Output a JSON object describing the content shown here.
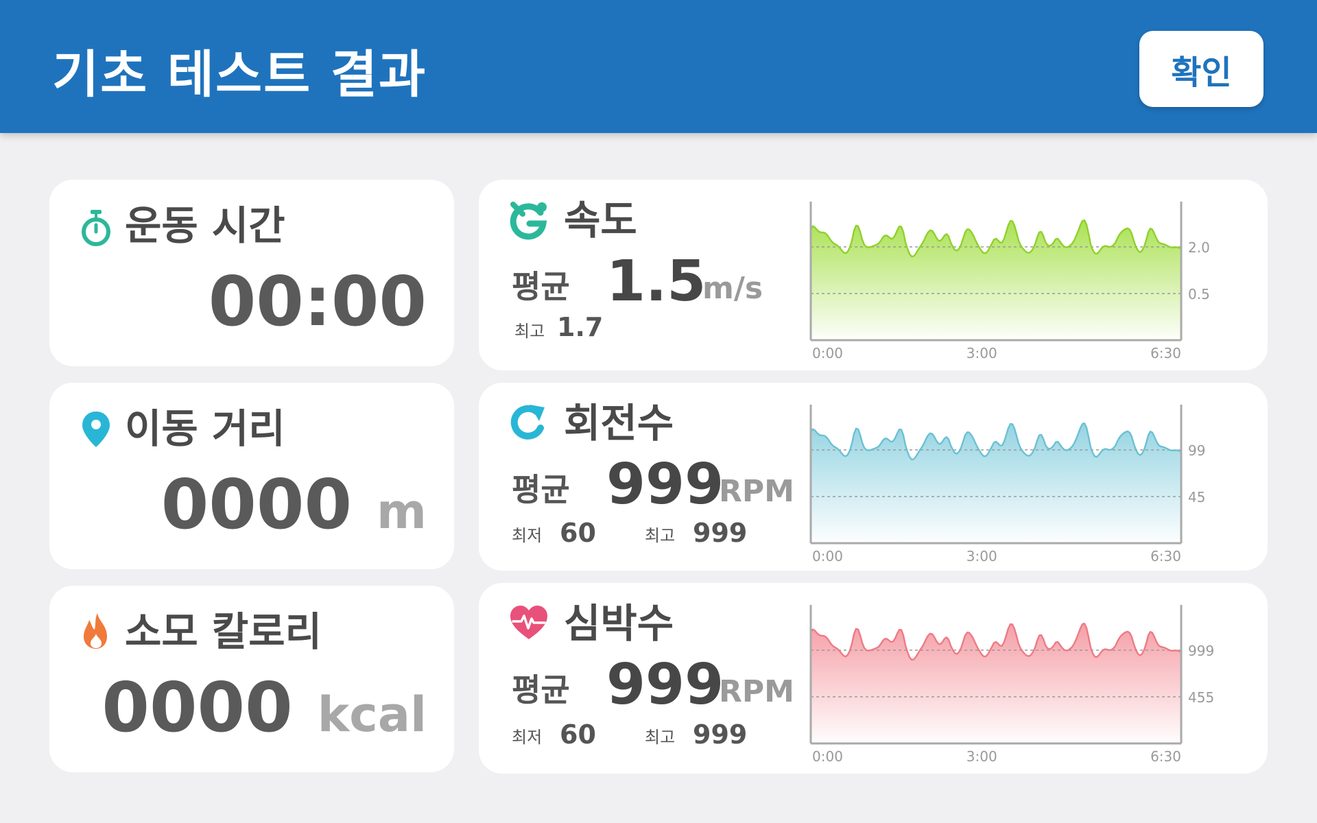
{
  "header": {
    "title": "기초 테스트 결과",
    "confirm_label": "확인"
  },
  "left_cards": [
    {
      "title": "운동 시간",
      "icon": "stopwatch-icon",
      "value": "00:00",
      "unit": "",
      "color": "#2bb89a"
    },
    {
      "title": "이동 거리",
      "icon": "location-pin-icon",
      "value": "0000",
      "unit": "m",
      "color": "#29b6d6"
    },
    {
      "title": "소모 칼로리",
      "icon": "flame-icon",
      "value": "0000",
      "unit": "kcal",
      "color": "#f07a3a"
    }
  ],
  "right_cards": [
    {
      "title": "속도",
      "icon": "speed-icon",
      "color": "#2bb89a",
      "avg_label": "평균",
      "avg_value": "1.5",
      "avg_unit": "m/s",
      "max_label": "최고",
      "max_value": "1.7"
    },
    {
      "title": "회전수",
      "icon": "rotation-icon",
      "color": "#29b6d6",
      "avg_label": "평균",
      "avg_value": "999",
      "avg_unit": "RPM",
      "min_label": "최저",
      "min_value": "60",
      "max_label": "최고",
      "max_value": "999"
    },
    {
      "title": "심박수",
      "icon": "heartbeat-icon",
      "color": "#e8517a",
      "avg_label": "평균",
      "avg_value": "999",
      "avg_unit": "RPM",
      "min_label": "최저",
      "min_value": "60",
      "max_label": "최고",
      "max_value": "999"
    }
  ],
  "chart_data": [
    {
      "type": "area",
      "x_ticks": [
        "0:00",
        "3:00",
        "6:30"
      ],
      "y_ticks": [
        "2.0",
        "0.5"
      ],
      "xlim": [
        0,
        6.5
      ],
      "line_color": "#8fd12c",
      "fill_color": "#a6e04a",
      "grid": "dashed"
    },
    {
      "type": "area",
      "x_ticks": [
        "0:00",
        "3:00",
        "6:30"
      ],
      "y_ticks": [
        "99",
        "45"
      ],
      "xlim": [
        0,
        6.5
      ],
      "line_color": "#6cc0d4",
      "fill_color": "#8fd2e0",
      "grid": "dashed"
    },
    {
      "type": "area",
      "x_ticks": [
        "0:00",
        "3:00",
        "6:30"
      ],
      "y_ticks": [
        "999",
        "455"
      ],
      "xlim": [
        0,
        6.5
      ],
      "line_color": "#ee7a86",
      "fill_color": "#f49aa2",
      "grid": "dashed"
    }
  ]
}
